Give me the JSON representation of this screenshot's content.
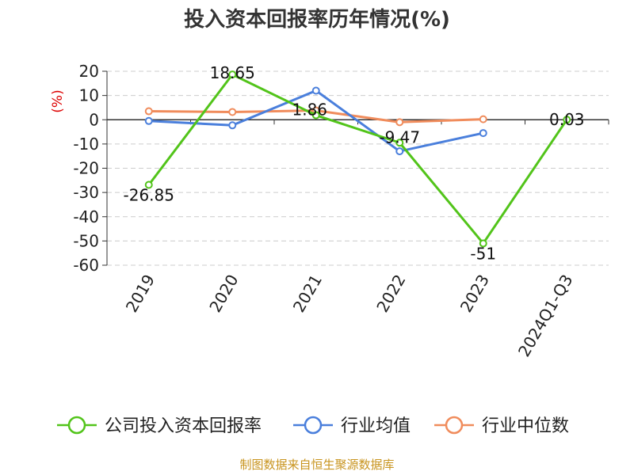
{
  "title": "投入资本回报率历年情况(%)",
  "source": "制图数据来自恒生聚源数据库",
  "chart_data": {
    "type": "line",
    "title": "投入资本回报率历年情况(%)",
    "xlabel": "",
    "ylabel": "(%)",
    "ylim": [
      -60,
      20
    ],
    "yticks": [
      20,
      10,
      0,
      -10,
      -20,
      -30,
      -40,
      -50,
      -60
    ],
    "grid": true,
    "legend_position": "bottom",
    "categories": [
      "2019",
      "2020",
      "2021",
      "2022",
      "2023",
      "2024Q1-Q3"
    ],
    "series": [
      {
        "name": "公司投入资本回报率",
        "color": "#52c41a",
        "values": [
          -26.85,
          18.65,
          1.86,
          -9.47,
          -51,
          0.03
        ],
        "labels": [
          "-26.85",
          "18.65",
          "1.86",
          "-9.47",
          "-51",
          "0.03"
        ]
      },
      {
        "name": "行业均值",
        "color": "#4a7fdc",
        "values": [
          -0.5,
          -2.3,
          12,
          -13,
          -5.5,
          null
        ]
      },
      {
        "name": "行业中位数",
        "color": "#f08c5c",
        "values": [
          3.5,
          3.2,
          3.8,
          -1,
          0.2,
          null
        ]
      }
    ]
  }
}
